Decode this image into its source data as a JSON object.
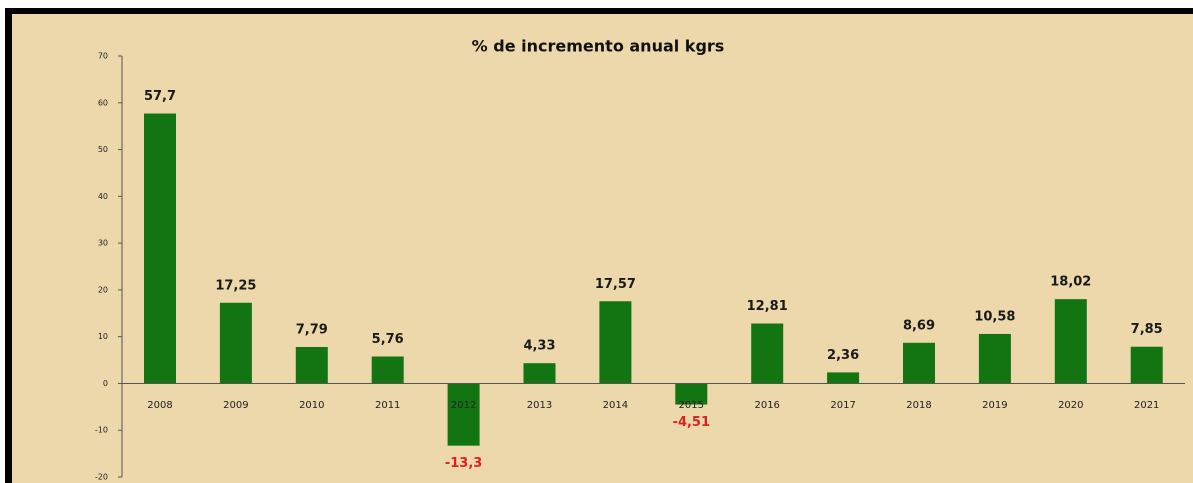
{
  "chart_data": {
    "type": "bar",
    "title": "% de incremento anual kgrs",
    "categories": [
      "2008",
      "2009",
      "2010",
      "2011",
      "2012",
      "2013",
      "2014",
      "2015",
      "2016",
      "2017",
      "2018",
      "2019",
      "2020",
      "2021"
    ],
    "values": [
      57.7,
      17.25,
      7.79,
      5.76,
      -13.3,
      4.33,
      17.57,
      -4.51,
      12.81,
      2.36,
      8.69,
      10.58,
      18.02,
      7.85
    ],
    "value_labels": [
      "57,7",
      "17,25",
      "7,79",
      "5,76",
      "-13,3",
      "4,33",
      "17,57",
      "-4,51",
      "12,81",
      "2,36",
      "8,69",
      "10,58",
      "18,02",
      "7,85"
    ],
    "color": "#127512",
    "label_color": "#1a1a1a",
    "negative_label_color": "#e02020",
    "ylim": [
      -20,
      70
    ],
    "yticks": [
      -20,
      -10,
      0,
      10,
      20,
      30,
      40,
      50,
      60,
      70
    ],
    "grid": false
  }
}
